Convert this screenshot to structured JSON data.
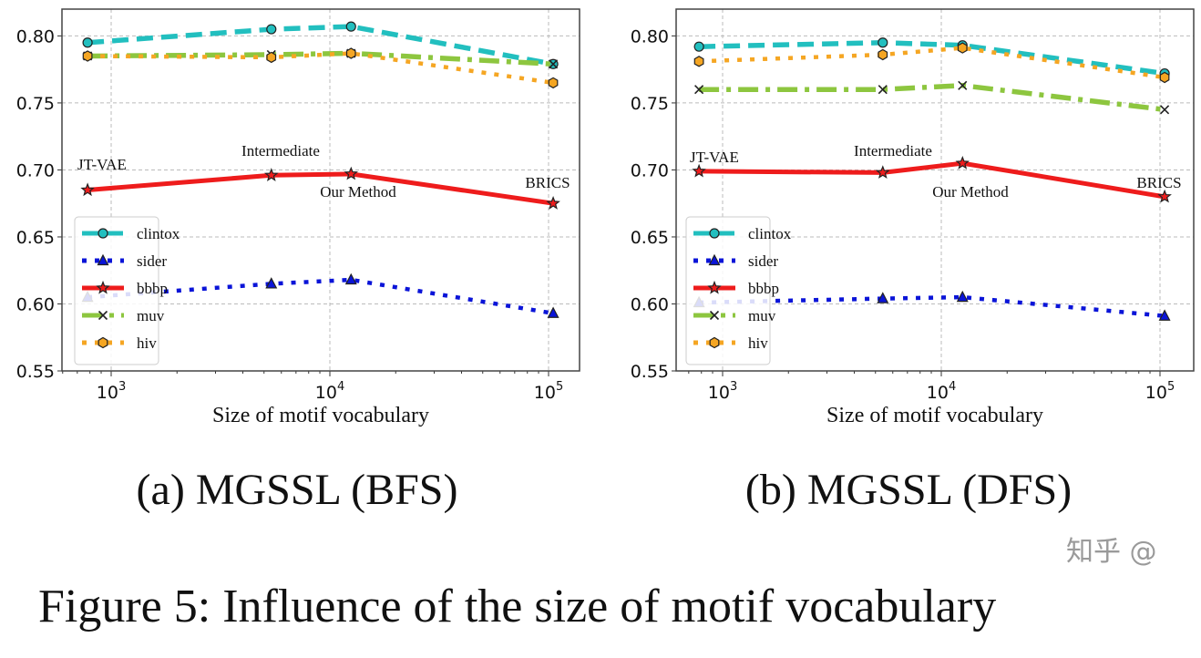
{
  "figure_caption": "Figure 5: Influence of the size of motif vocabulary",
  "watermark": "知乎 @",
  "chart_data": [
    {
      "type": "line",
      "caption": "(a) MGSSL (BFS)",
      "xlabel": "Size of motif vocabulary",
      "ylabel": "",
      "xscale": "log",
      "x": [
        780,
        5400,
        12500,
        105000
      ],
      "xticks": [
        "10^3",
        "10^4",
        "10^5"
      ],
      "yticks": [
        "0.55",
        "0.60",
        "0.65",
        "0.70",
        "0.75",
        "0.80"
      ],
      "ylim": [
        0.55,
        0.82
      ],
      "grid": true,
      "legend": "lower-left",
      "annotations": [
        "JT-VAE",
        "Intermediate",
        "Our Method",
        "BRICS"
      ],
      "series": [
        {
          "name": "clintox",
          "color": "#22bfbf",
          "style": "dashed",
          "marker": "circle",
          "values": [
            0.795,
            0.805,
            0.807,
            0.779
          ]
        },
        {
          "name": "sider",
          "color": "#0a14d8",
          "style": "dotted",
          "marker": "triangle",
          "values": [
            0.605,
            0.615,
            0.618,
            0.593
          ]
        },
        {
          "name": "bbbp",
          "color": "#ee1c1c",
          "style": "solid",
          "marker": "star",
          "values": [
            0.685,
            0.696,
            0.697,
            0.675
          ]
        },
        {
          "name": "muv",
          "color": "#8dc63f",
          "style": "dashdot",
          "marker": "x",
          "values": [
            0.785,
            0.786,
            0.787,
            0.779
          ]
        },
        {
          "name": "hiv",
          "color": "#f5a623",
          "style": "dotted",
          "marker": "hexagon",
          "values": [
            0.785,
            0.784,
            0.787,
            0.765
          ]
        }
      ]
    },
    {
      "type": "line",
      "caption": "(b) MGSSL (DFS)",
      "xlabel": "Size of motif vocabulary",
      "ylabel": "",
      "xscale": "log",
      "x": [
        780,
        5400,
        12500,
        105000
      ],
      "xticks": [
        "10^3",
        "10^4",
        "10^5"
      ],
      "yticks": [
        "0.55",
        "0.60",
        "0.65",
        "0.70",
        "0.75",
        "0.80"
      ],
      "ylim": [
        0.55,
        0.82
      ],
      "grid": true,
      "legend": "lower-left",
      "annotations": [
        "JT-VAE",
        "Intermediate",
        "Our Method",
        "BRICS"
      ],
      "series": [
        {
          "name": "clintox",
          "color": "#22bfbf",
          "style": "dashed",
          "marker": "circle",
          "values": [
            0.792,
            0.795,
            0.793,
            0.772
          ]
        },
        {
          "name": "sider",
          "color": "#0a14d8",
          "style": "dotted",
          "marker": "triangle",
          "values": [
            0.601,
            0.604,
            0.605,
            0.591
          ]
        },
        {
          "name": "bbbp",
          "color": "#ee1c1c",
          "style": "solid",
          "marker": "star",
          "values": [
            0.699,
            0.698,
            0.705,
            0.68
          ]
        },
        {
          "name": "muv",
          "color": "#8dc63f",
          "style": "dashdot",
          "marker": "x",
          "values": [
            0.76,
            0.76,
            0.763,
            0.745
          ]
        },
        {
          "name": "hiv",
          "color": "#f5a623",
          "style": "dotted",
          "marker": "hexagon",
          "values": [
            0.781,
            0.786,
            0.791,
            0.769
          ]
        }
      ]
    }
  ]
}
